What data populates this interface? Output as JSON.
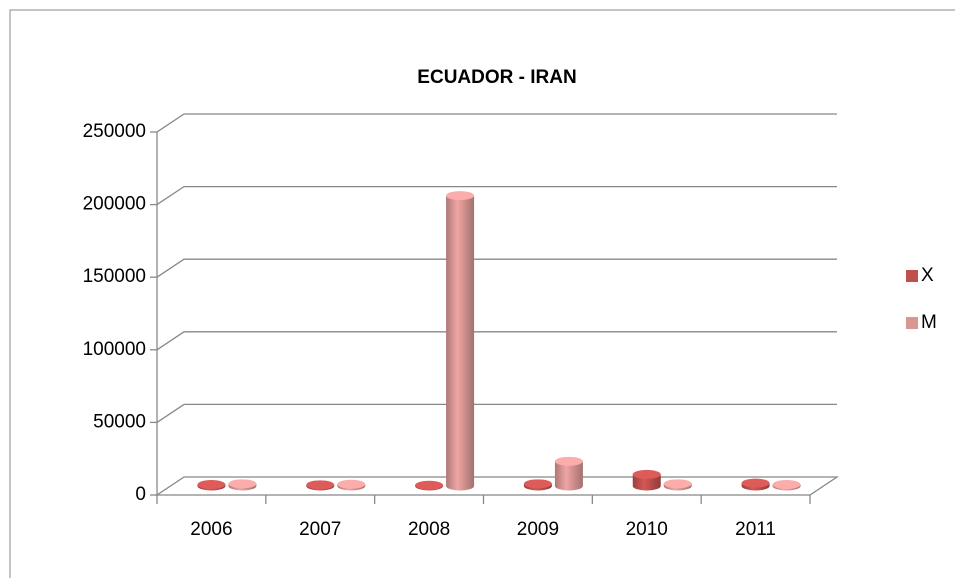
{
  "chart_data": {
    "type": "bar3d",
    "title": "ECUADOR - IRAN",
    "categories": [
      "2006",
      "2007",
      "2008",
      "2009",
      "2010",
      "2011"
    ],
    "series": [
      {
        "name": "X",
        "color": "#c0504d",
        "values": [
          1000,
          800,
          500,
          1500,
          8000,
          2000
        ]
      },
      {
        "name": "M",
        "color": "#d99694",
        "values": [
          1500,
          1200,
          200000,
          17000,
          1500,
          1000
        ]
      }
    ],
    "ylim": [
      0,
      250000
    ],
    "yticks": [
      0,
      50000,
      100000,
      150000,
      200000,
      250000
    ],
    "grid": true,
    "legend": "right"
  }
}
